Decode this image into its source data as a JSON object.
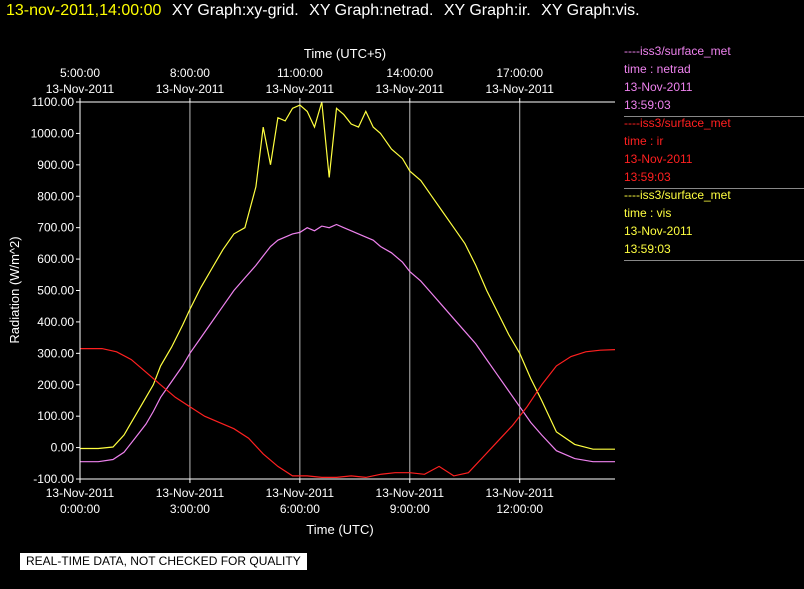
{
  "header": {
    "timestamp": "13-nov-2011,14:00:00",
    "graphs": [
      "XY Graph:xy-grid.",
      "XY Graph:netrad.",
      "XY Graph:ir.",
      "XY Graph:vis."
    ]
  },
  "legend": [
    {
      "line": "----iss3/surface_met",
      "var": "time : netrad",
      "date": "13-Nov-2011",
      "time": "13:59:03",
      "color": "#ee82ee"
    },
    {
      "line": "----iss3/surface_met",
      "var": "time : ir",
      "date": "13-Nov-2011",
      "time": "13:59:03",
      "color": "#ff2020"
    },
    {
      "line": "----iss3/surface_met",
      "var": "time : vis",
      "date": "13-Nov-2011",
      "time": "13:59:03",
      "color": "#ffff40"
    }
  ],
  "disclaimer": "REAL-TIME DATA, NOT CHECKED FOR QUALITY",
  "chart_data": {
    "type": "line",
    "ylabel": "Radiation (W/m^2)",
    "xlabel_bottom": "Time (UTC)",
    "xlabel_top": "Time (UTC+5)",
    "ylim": [
      -100,
      1100
    ],
    "xlim_hours": [
      0,
      14.6
    ],
    "yticks": [
      "1100.00",
      "1000.00",
      "900.00",
      "800.00",
      "700.00",
      "600.00",
      "500.00",
      "400.00",
      "300.00",
      "200.00",
      "100.00",
      "0.00",
      "-100.00"
    ],
    "xticks_bottom": [
      {
        "h": 0,
        "date": "13-Nov-2011",
        "time": "0:00:00"
      },
      {
        "h": 3,
        "date": "13-Nov-2011",
        "time": "3:00:00"
      },
      {
        "h": 6,
        "date": "13-Nov-2011",
        "time": "6:00:00"
      },
      {
        "h": 9,
        "date": "13-Nov-2011",
        "time": "9:00:00"
      },
      {
        "h": 12,
        "date": "13-Nov-2011",
        "time": "12:00:00"
      }
    ],
    "xticks_top": [
      {
        "h": 0,
        "time": "5:00:00",
        "date": "13-Nov-2011"
      },
      {
        "h": 3,
        "time": "8:00:00",
        "date": "13-Nov-2011"
      },
      {
        "h": 6,
        "time": "11:00:00",
        "date": "13-Nov-2011"
      },
      {
        "h": 9,
        "time": "14:00:00",
        "date": "13-Nov-2011"
      },
      {
        "h": 12,
        "time": "17:00:00",
        "date": "13-Nov-2011"
      }
    ],
    "grid": true,
    "series": [
      {
        "name": "vis",
        "color": "#ffff40",
        "x": [
          0,
          0.5,
          0.9,
          1.2,
          1.5,
          1.8,
          2.0,
          2.2,
          2.5,
          2.8,
          3.0,
          3.3,
          3.6,
          3.9,
          4.2,
          4.5,
          4.8,
          5.0,
          5.2,
          5.4,
          5.6,
          5.8,
          6.0,
          6.2,
          6.4,
          6.6,
          6.8,
          7.0,
          7.2,
          7.4,
          7.6,
          7.8,
          8.0,
          8.2,
          8.5,
          8.8,
          9.0,
          9.3,
          9.6,
          9.9,
          10.2,
          10.5,
          10.8,
          11.1,
          11.4,
          11.7,
          12.0,
          12.3,
          12.6,
          13.0,
          13.5,
          14.0,
          14.6
        ],
        "values": [
          -3,
          -3,
          2,
          40,
          100,
          160,
          200,
          260,
          320,
          390,
          440,
          510,
          570,
          630,
          680,
          700,
          830,
          1020,
          900,
          1050,
          1040,
          1080,
          1090,
          1070,
          1020,
          1100,
          860,
          1080,
          1060,
          1030,
          1020,
          1070,
          1020,
          1000,
          950,
          920,
          880,
          850,
          800,
          750,
          700,
          650,
          580,
          500,
          430,
          360,
          300,
          220,
          150,
          50,
          10,
          -5,
          -5
        ]
      },
      {
        "name": "netrad",
        "color": "#ee82ee",
        "x": [
          0,
          0.5,
          0.9,
          1.2,
          1.5,
          1.8,
          2.0,
          2.2,
          2.5,
          2.8,
          3.0,
          3.3,
          3.6,
          3.9,
          4.2,
          4.5,
          4.8,
          5.0,
          5.2,
          5.4,
          5.6,
          5.8,
          6.0,
          6.2,
          6.4,
          6.6,
          6.8,
          7.0,
          7.2,
          7.4,
          7.6,
          7.8,
          8.0,
          8.2,
          8.5,
          8.8,
          9.0,
          9.3,
          9.6,
          9.9,
          10.2,
          10.5,
          10.8,
          11.1,
          11.4,
          11.7,
          12.0,
          12.3,
          12.6,
          13.0,
          13.5,
          14.0,
          14.6
        ],
        "values": [
          -45,
          -45,
          -38,
          -15,
          30,
          75,
          115,
          160,
          210,
          260,
          300,
          350,
          400,
          450,
          500,
          540,
          580,
          610,
          640,
          660,
          670,
          680,
          685,
          700,
          690,
          705,
          700,
          710,
          700,
          690,
          680,
          670,
          660,
          640,
          620,
          590,
          560,
          530,
          490,
          450,
          410,
          370,
          330,
          280,
          230,
          180,
          130,
          80,
          40,
          -10,
          -35,
          -45,
          -45
        ]
      },
      {
        "name": "ir",
        "color": "#ff2020",
        "x": [
          0,
          0.6,
          1.0,
          1.4,
          1.8,
          2.2,
          2.6,
          3.0,
          3.4,
          3.8,
          4.2,
          4.6,
          5.0,
          5.4,
          5.8,
          6.2,
          6.6,
          7.0,
          7.4,
          7.8,
          8.2,
          8.6,
          9.0,
          9.4,
          9.8,
          10.2,
          10.6,
          11.0,
          11.4,
          11.8,
          12.2,
          12.6,
          13.0,
          13.4,
          13.8,
          14.2,
          14.6
        ],
        "values": [
          315,
          315,
          305,
          280,
          240,
          200,
          160,
          130,
          100,
          80,
          60,
          30,
          -20,
          -60,
          -90,
          -90,
          -95,
          -95,
          -90,
          -95,
          -85,
          -80,
          -80,
          -85,
          -60,
          -90,
          -80,
          -30,
          20,
          70,
          130,
          200,
          260,
          290,
          305,
          310,
          312
        ]
      }
    ]
  }
}
